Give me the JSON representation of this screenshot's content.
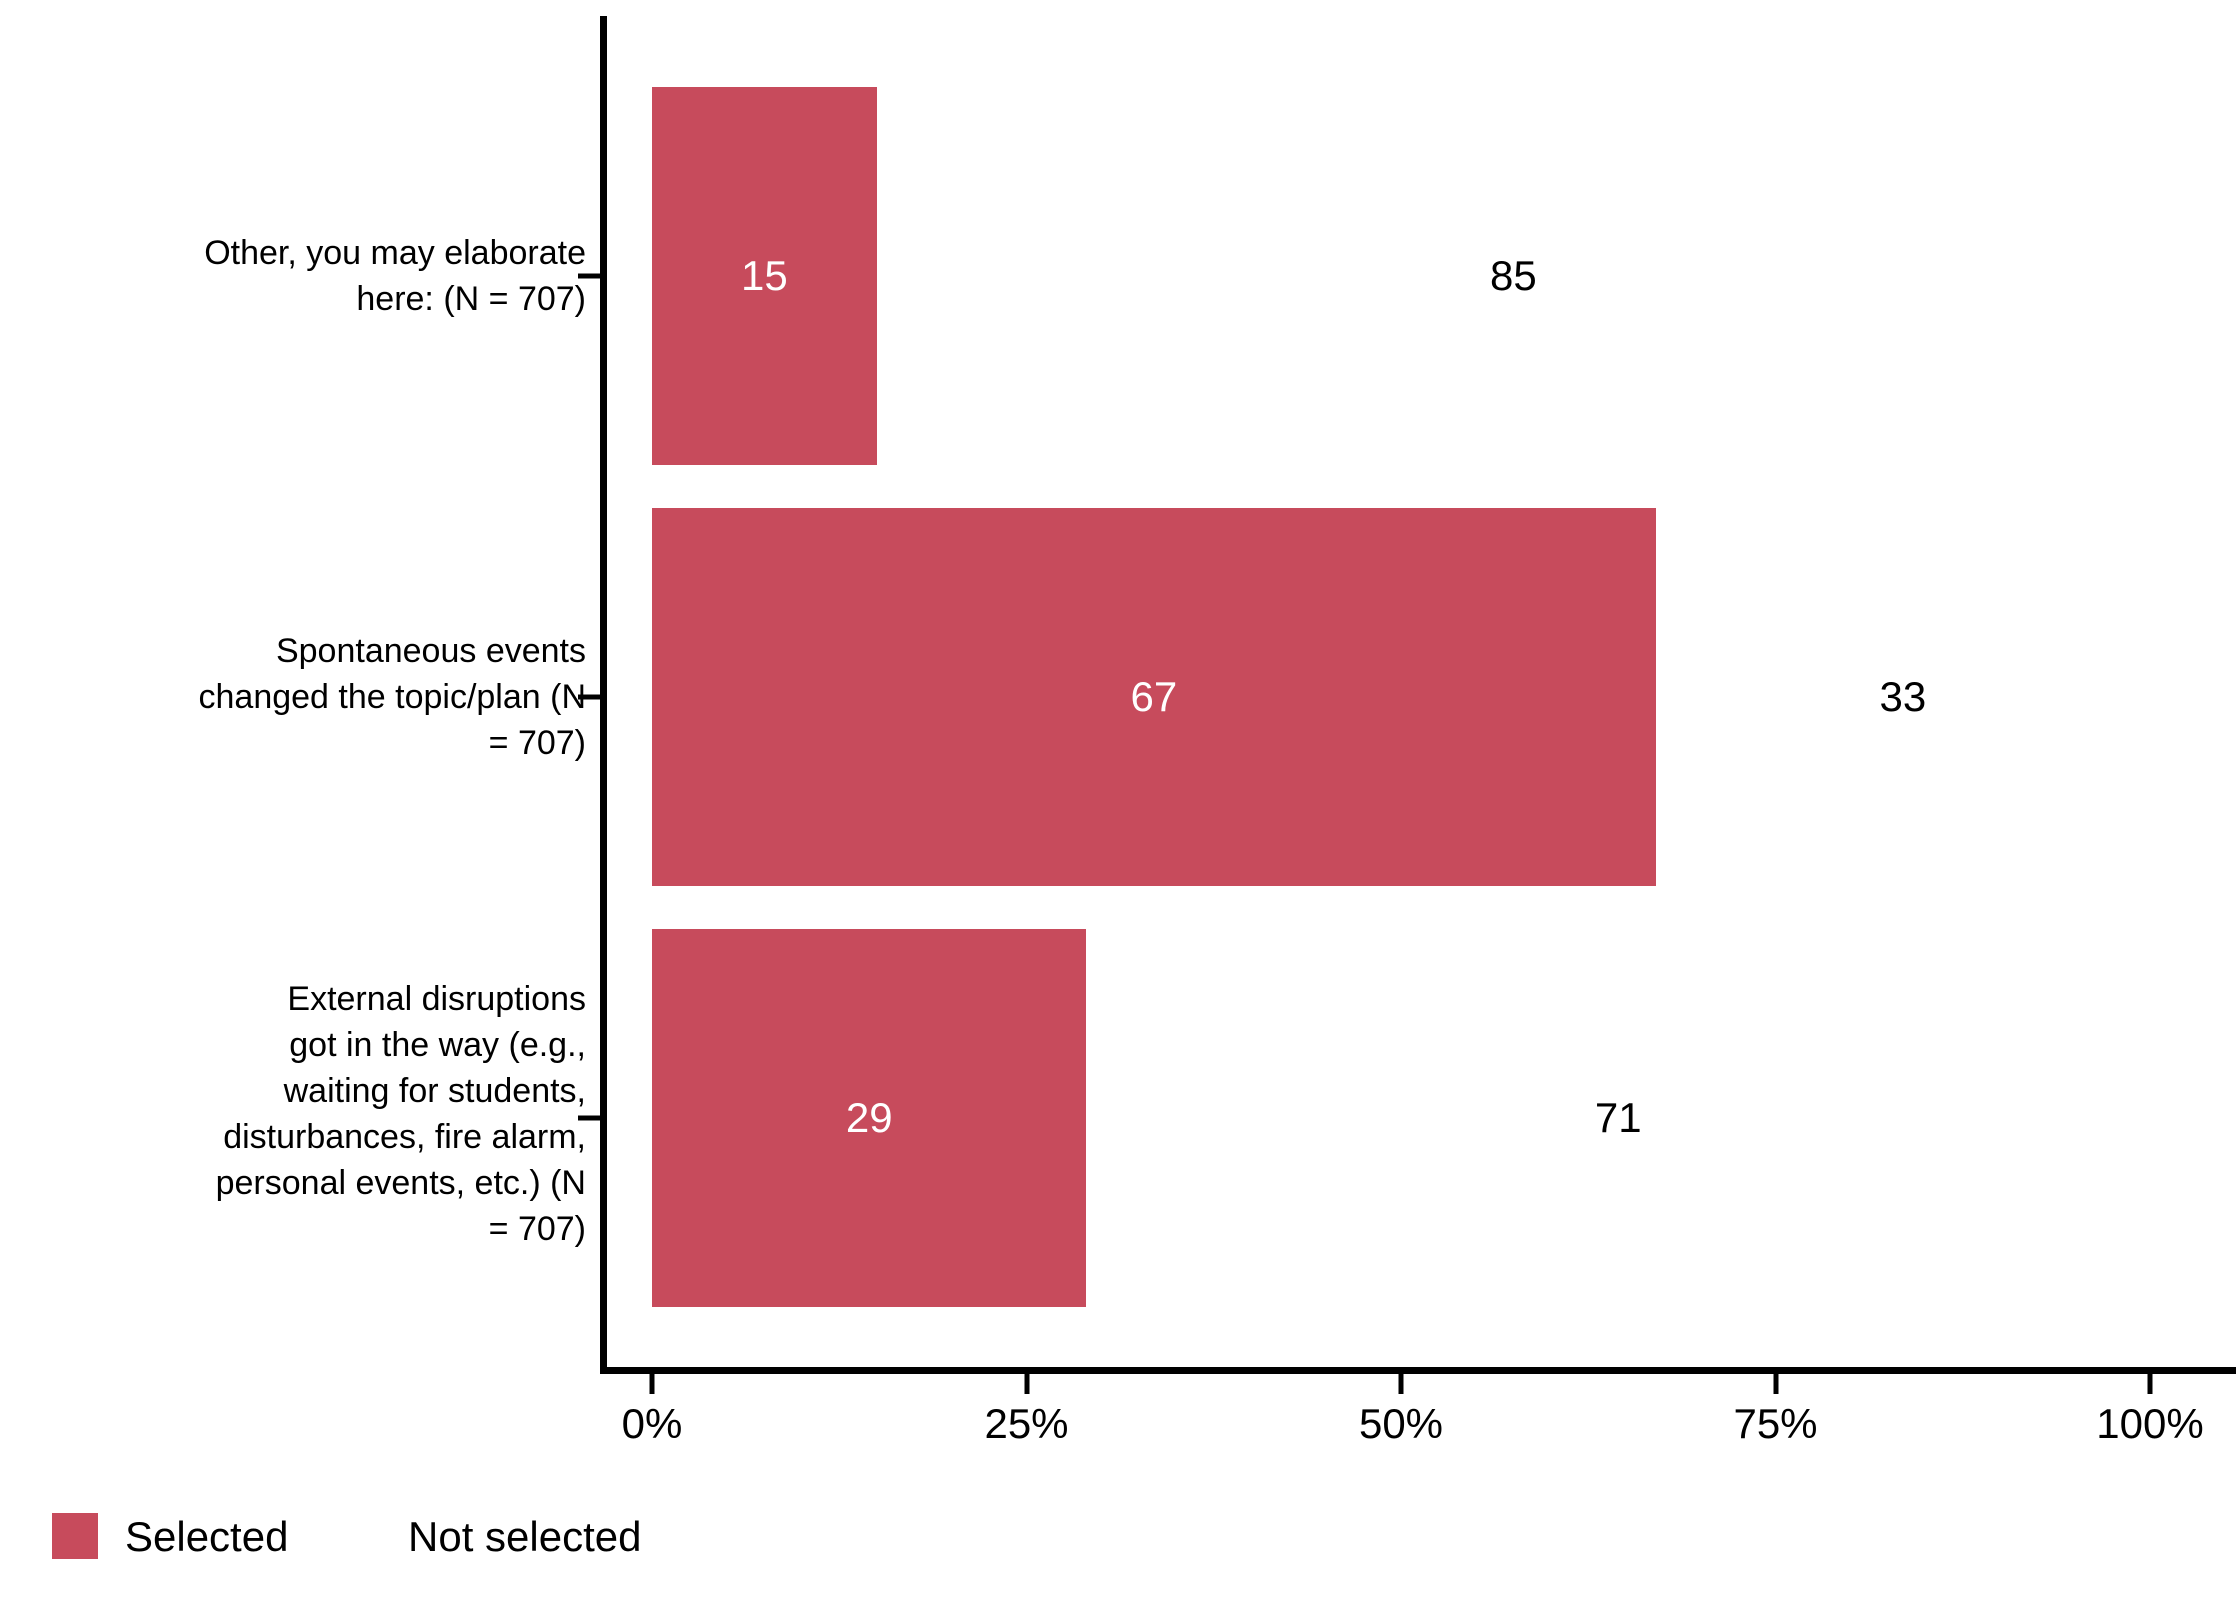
{
  "chart_data": {
    "type": "bar",
    "orientation": "horizontal",
    "stacked": true,
    "title": "",
    "xlabel": "",
    "ylabel": "",
    "categories": [
      "Other, you may elaborate here: (N = 707)",
      "Spontaneous events changed the topic/plan (N = 707)",
      "External disruptions got in the way (e.g., waiting for students, disturbances, fire alarm, personal events, etc.) (N = 707)"
    ],
    "category_lines": [
      [
        "Other, you may elaborate",
        "here: (N = 707)"
      ],
      [
        "Spontaneous events",
        "changed the topic/plan (N",
        "= 707)"
      ],
      [
        "External disruptions",
        "got in the way (e.g.,",
        "waiting for students,",
        "disturbances, fire alarm,",
        "personal events, etc.) (N",
        "= 707)"
      ]
    ],
    "series": [
      {
        "name": "Selected",
        "values": [
          15,
          67,
          29
        ],
        "color": "#C74B5C",
        "label_color": "#FFFFFF"
      },
      {
        "name": "Not selected",
        "values": [
          85,
          33,
          71
        ],
        "color": "#FFFFFF",
        "label_color": "#000000"
      }
    ],
    "x_axis": {
      "tick_labels": [
        "0%",
        "25%",
        "50%",
        "75%",
        "100%"
      ],
      "tick_values": [
        0,
        25,
        50,
        75,
        100
      ],
      "range": [
        0,
        100
      ],
      "units": "percent"
    },
    "grid": false,
    "legend": {
      "position": "bottom-left",
      "items": [
        {
          "label": "Selected",
          "swatch": "#C74B5C"
        },
        {
          "label": "Not selected",
          "swatch": "#FFFFFF"
        }
      ]
    },
    "background": "#FFFFFF",
    "axis_color": "#000000",
    "text_color": "#000000"
  }
}
